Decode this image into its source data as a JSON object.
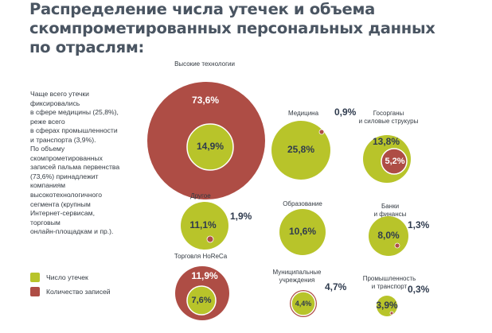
{
  "title_lines": [
    "Распределение числа утечек и объема",
    "скомпрометированных персональных данных",
    "по отраслям:"
  ],
  "note1_lines": [
    "Чаще всего утечки",
    "фиксировались",
    "в сфере медицины (25,8%),",
    "реже всего",
    "в сферах промышленности",
    "и транспорта (3,9%)."
  ],
  "note2_lines": [
    "По объему",
    "скомпрометированных",
    "записей пальма первенства",
    "(73,6%) принадлежит",
    "компаниям",
    "высокотехнологичного",
    "сегмента (крупным",
    "Интернет-сервисам,",
    "торговым",
    "онлайн-площадкам и пр.)."
  ],
  "legend": {
    "leaks": "Число утечек",
    "records": "Количество записей"
  },
  "colors": {
    "leaks": "#b8c42a",
    "records": "#ae4d45",
    "title": "#4a5562",
    "value_dark": "#2f3b4e"
  },
  "chart_data": {
    "type": "bubble",
    "series": [
      {
        "name": "Число утечек",
        "color": "#b8c42a"
      },
      {
        "name": "Количество записей",
        "color": "#ae4d45"
      }
    ],
    "sectors": [
      {
        "name": "Высокие технологии",
        "leaks_label": "14,9%",
        "records_label": "73,6%",
        "leaks": 14.9,
        "records": 73.6
      },
      {
        "name": "Медицина",
        "leaks_label": "25,8%",
        "records_label": "0,9%",
        "leaks": 25.8,
        "records": 0.9
      },
      {
        "name": "Госорганы и силовые струкуры",
        "name_lines": [
          "Госорганы",
          "и силовые струкуры"
        ],
        "leaks_label": "13,8%",
        "records_label": "5,2%",
        "leaks": 13.8,
        "records": 5.2
      },
      {
        "name": "Другое",
        "leaks_label": "11,1%",
        "records_label": "1,9%",
        "leaks": 11.1,
        "records": 1.9
      },
      {
        "name": "Образование",
        "leaks_label": "10,6%",
        "records_label": "",
        "leaks": 10.6,
        "records": null
      },
      {
        "name": "Банки и финансы",
        "name_lines": [
          "Банки",
          "и финансы"
        ],
        "leaks_label": "8,0%",
        "records_label": "1,3%",
        "leaks": 8.0,
        "records": 1.3
      },
      {
        "name": "Торговля HoReCa",
        "leaks_label": "7,6%",
        "records_label": "11,9%",
        "leaks": 7.6,
        "records": 11.9
      },
      {
        "name": "Муниципальные учреждения",
        "name_lines": [
          "Муниципальные",
          "учреждения"
        ],
        "leaks_label": "4,4%",
        "records_label": "4,7%",
        "leaks": 4.4,
        "records": 4.7
      },
      {
        "name": "Промышленность и транспорт",
        "name_lines": [
          "Промышленность",
          "и транспорт"
        ],
        "leaks_label": "3,9%",
        "records_label": "0,3%",
        "leaks": 3.9,
        "records": 0.3
      }
    ]
  }
}
